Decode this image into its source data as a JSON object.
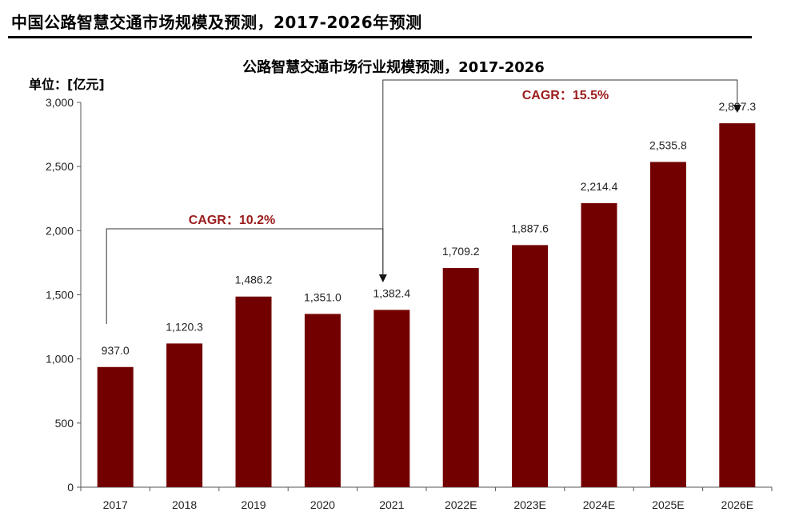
{
  "page": {
    "title": "中国公路智慧交通市场规模及预测，2017-2026年预测"
  },
  "chart_data": {
    "type": "bar",
    "title": "公路智慧交通市场行业规模预测，2017-2026",
    "ylabel": "单位：[亿元]",
    "xlabel": "",
    "categories": [
      "2017",
      "2018",
      "2019",
      "2020",
      "2021",
      "2022E",
      "2023E",
      "2024E",
      "2025E",
      "2026E"
    ],
    "values": [
      937.0,
      1120.3,
      1486.2,
      1351.0,
      1382.4,
      1709.2,
      1887.6,
      2214.4,
      2535.8,
      2837.3
    ],
    "value_labels": [
      "937.0",
      "1,120.3",
      "1,486.2",
      "1,351.0",
      "1,382.4",
      "1,709.2",
      "1,887.6",
      "2,214.4",
      "2,535.8",
      "2,837.3"
    ],
    "yticks": [
      0,
      500,
      1000,
      1500,
      2000,
      2500,
      3000
    ],
    "ytick_labels": [
      "0",
      "500",
      "1,000",
      "1,500",
      "2,000",
      "2,500",
      "3,000"
    ],
    "ylim": [
      0,
      3000
    ],
    "grid": false,
    "bar_color": "#730000",
    "annotations": [
      {
        "label": "CAGR：10.2%",
        "from": "2017",
        "to": "2021",
        "color": "#9b1c1c"
      },
      {
        "label": "CAGR：15.5%",
        "from": "2021",
        "to": "2026E",
        "color": "#9b1c1c"
      }
    ]
  }
}
